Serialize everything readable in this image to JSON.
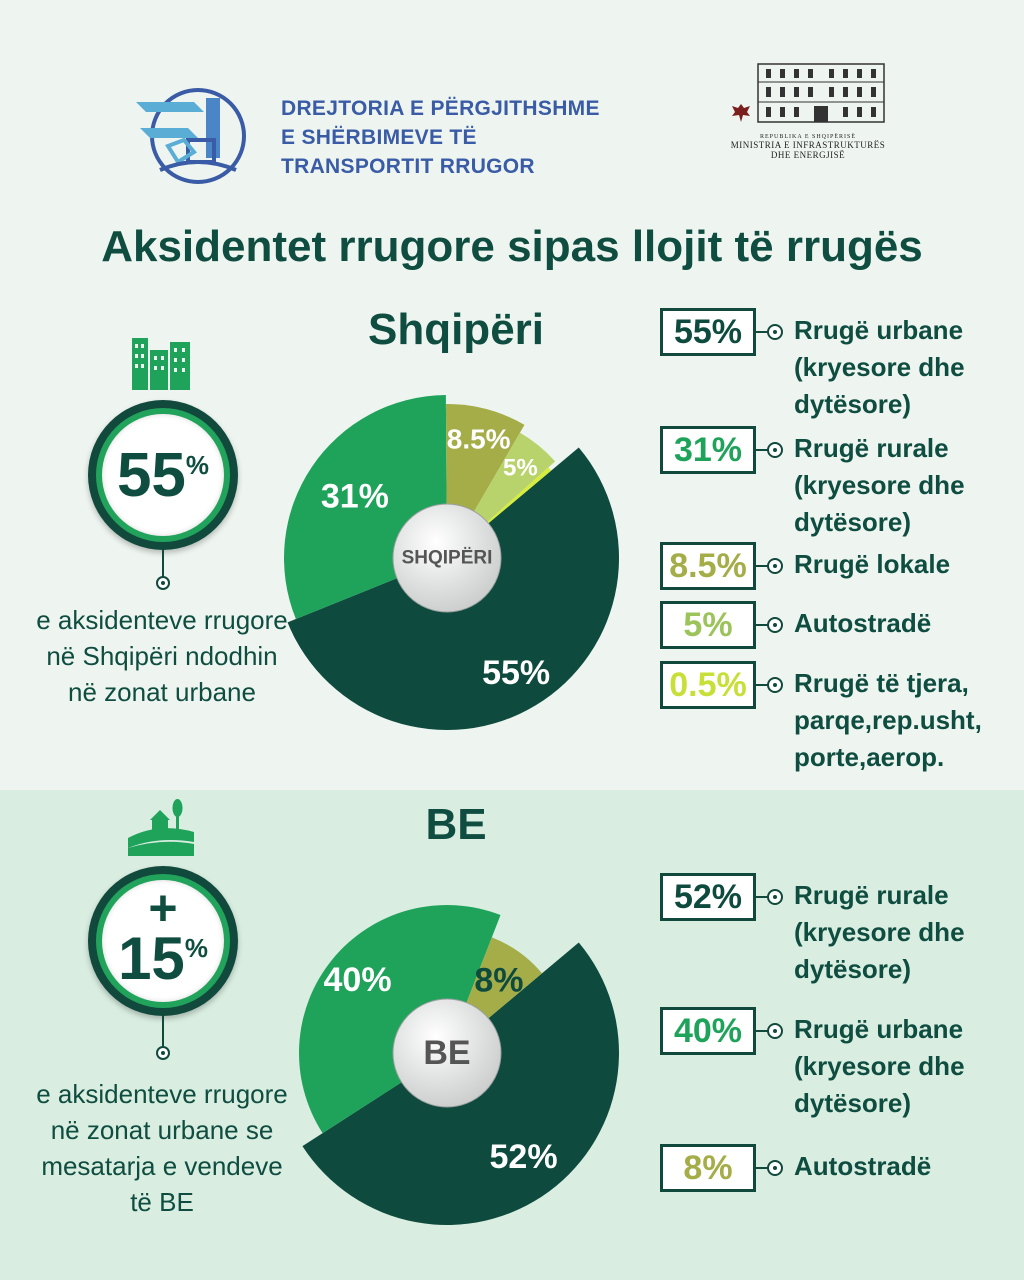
{
  "header": {
    "org_lines": [
      "DREJTORIA E PËRGJITHSHME",
      "E SHËRBIMEVE TË",
      "TRANSPORTIT RRUGOR"
    ],
    "ministry_rep": "REPUBLIKA E SHQIPËRISË",
    "ministry_lines": [
      "MINISTRIA E INFRASTRUKTURËS",
      "DHE ENERGJISË"
    ],
    "title": "Aksidentet rrugore sipas llojit të rrugës"
  },
  "albania": {
    "badge_value": "55",
    "badge_sign": "",
    "badge_pct": "%",
    "side_text": "e aksidenteve rrugore në Shqipëri ndodhin në zonat urbane",
    "section_title": "Shqipëri",
    "center_label": "SHQIPËRI",
    "legend": [
      {
        "value": "55%",
        "label": "Rrugë urbane (kryesore dhe dytësore)"
      },
      {
        "value": "31%",
        "label": "Rrugë rurale (kryesore dhe dytësore)"
      },
      {
        "value": "8.5%",
        "label": "Rrugë lokale"
      },
      {
        "value": "5%",
        "label": "Autostradë"
      },
      {
        "value": "0.5%",
        "label": "Rrugë të tjera, parqe,rep.usht, porte,aerop."
      }
    ]
  },
  "eu": {
    "badge_value": "15",
    "badge_sign": "+",
    "badge_pct": "%",
    "side_text": "e aksidenteve rrugore në zonat urbane se mesatarja e vendeve të BE",
    "section_title": "BE",
    "center_label": "BE",
    "legend": [
      {
        "value": "52%",
        "label": "Rrugë rurale (kryesore dhe dytësore)"
      },
      {
        "value": "40%",
        "label": "Rrugë urbane (kryesore dhe dytësore)"
      },
      {
        "value": "8%",
        "label": "Autostradë"
      }
    ]
  },
  "chart_data": [
    {
      "type": "pie",
      "categories": [
        "Rrugë urbane (kryesore dhe dytësore)",
        "Rrugë rurale (kryesore dhe dytësore)",
        "Rrugë lokale",
        "Autostradë",
        "Rrugë të tjera, parqe,rep.usht, porte,aerop."
      ],
      "values": [
        55,
        31,
        8.5,
        5,
        0.5
      ],
      "slice_labels": [
        "55%",
        "31%",
        "8.5%",
        "5%",
        ""
      ],
      "colors": [
        "#0e4b3e",
        "#1fa35b",
        "#a4ad48",
        "#b8d36b",
        "#d8ec3e"
      ],
      "text_colors": [
        "#ffffff",
        "#ffffff",
        "#ffffff",
        "#ffffff",
        "#ffffff"
      ],
      "legend_text_colors": [
        "#0e4b3e",
        "#1fa35b",
        "#a4ad48",
        "#9cc45a",
        "#c7df37"
      ],
      "title": "Shqipëri"
    },
    {
      "type": "pie",
      "categories": [
        "Rrugë rurale (kryesore dhe dytësore)",
        "Rrugë urbane (kryesore dhe dytësore)",
        "Autostradë"
      ],
      "values": [
        52,
        40,
        8
      ],
      "slice_labels": [
        "52%",
        "40%",
        "8%"
      ],
      "colors": [
        "#0e4b3e",
        "#1fa35b",
        "#a4ad48"
      ],
      "text_colors": [
        "#ffffff",
        "#ffffff",
        "#0e4b3e"
      ],
      "legend_text_colors": [
        "#0e4b3e",
        "#1fa35b",
        "#a4ad48"
      ],
      "title": "BE"
    }
  ]
}
